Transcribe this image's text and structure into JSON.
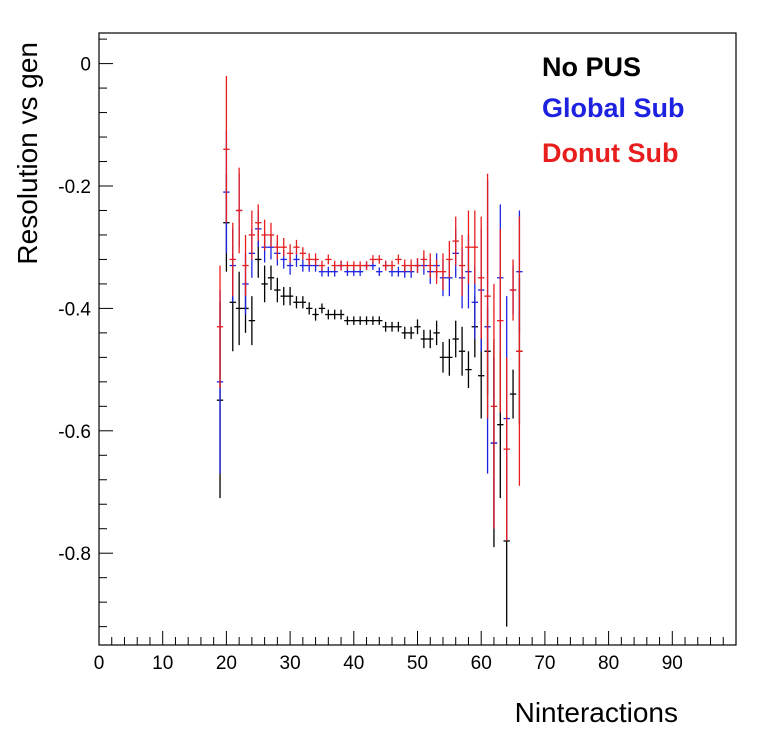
{
  "chart_data": {
    "type": "scatter",
    "xlabel": "Ninteractions",
    "ylabel": "Resolution vs gen",
    "xlim": [
      0,
      100
    ],
    "ylim": [
      -0.95,
      0.05
    ],
    "x_ticks": [
      0,
      10,
      20,
      30,
      40,
      50,
      60,
      70,
      80,
      90
    ],
    "y_ticks": [
      0,
      -0.2,
      -0.4,
      -0.6,
      -0.8
    ],
    "x_tick_labels": [
      "0",
      "10",
      "20",
      "30",
      "40",
      "50",
      "60",
      "70",
      "80",
      "90"
    ],
    "y_tick_labels": [
      "0",
      "-0.2",
      "-0.4",
      "-0.6",
      "-0.8"
    ],
    "grid": false,
    "legend_position": "top-right",
    "x_error_half_width": 0.5,
    "series": [
      {
        "name": "No PUS",
        "color": "#000000",
        "x": [
          19,
          20,
          21,
          22,
          23,
          24,
          25,
          26,
          27,
          28,
          29,
          30,
          31,
          32,
          33,
          34,
          35,
          36,
          37,
          38,
          39,
          40,
          41,
          42,
          43,
          44,
          45,
          46,
          47,
          48,
          49,
          50,
          51,
          52,
          53,
          54,
          55,
          56,
          57,
          58,
          59,
          60,
          61,
          62,
          63,
          64,
          65,
          66
        ],
        "y": [
          -0.55,
          -0.26,
          -0.39,
          -0.4,
          -0.4,
          -0.42,
          -0.32,
          -0.36,
          -0.35,
          -0.37,
          -0.38,
          -0.38,
          -0.39,
          -0.39,
          -0.4,
          -0.41,
          -0.4,
          -0.41,
          -0.41,
          -0.41,
          -0.42,
          -0.42,
          -0.42,
          -0.42,
          -0.42,
          -0.42,
          -0.43,
          -0.43,
          -0.43,
          -0.44,
          -0.44,
          -0.43,
          -0.45,
          -0.45,
          -0.44,
          -0.48,
          -0.48,
          -0.45,
          -0.47,
          -0.5,
          -0.43,
          -0.51,
          -0.47,
          -0.62,
          -0.59,
          -0.78,
          -0.54,
          -0.47
        ],
        "err": [
          0.16,
          0.08,
          0.08,
          0.06,
          0.04,
          0.04,
          0.03,
          0.03,
          0.02,
          0.02,
          0.015,
          0.015,
          0.01,
          0.01,
          0.01,
          0.01,
          0.008,
          0.008,
          0.008,
          0.008,
          0.007,
          0.007,
          0.007,
          0.007,
          0.007,
          0.007,
          0.008,
          0.008,
          0.008,
          0.01,
          0.01,
          0.012,
          0.015,
          0.015,
          0.02,
          0.025,
          0.03,
          0.03,
          0.04,
          0.03,
          0.05,
          0.07,
          0.07,
          0.17,
          0.12,
          0.14,
          0.04,
          0.12
        ]
      },
      {
        "name": "Global Sub",
        "color": "#1d22e0",
        "x": [
          19,
          20,
          21,
          22,
          23,
          24,
          25,
          26,
          27,
          28,
          29,
          30,
          31,
          32,
          33,
          34,
          35,
          36,
          37,
          38,
          39,
          40,
          41,
          42,
          43,
          44,
          45,
          46,
          47,
          48,
          49,
          50,
          51,
          52,
          53,
          54,
          55,
          56,
          57,
          58,
          59,
          60,
          61,
          62,
          63,
          64,
          65,
          66
        ],
        "y": [
          -0.52,
          -0.21,
          -0.33,
          -0.24,
          -0.36,
          -0.31,
          -0.27,
          -0.3,
          -0.3,
          -0.31,
          -0.32,
          -0.33,
          -0.32,
          -0.33,
          -0.33,
          -0.33,
          -0.34,
          -0.34,
          -0.34,
          -0.33,
          -0.34,
          -0.34,
          -0.34,
          -0.33,
          -0.33,
          -0.34,
          -0.33,
          -0.34,
          -0.34,
          -0.34,
          -0.34,
          -0.33,
          -0.33,
          -0.34,
          -0.33,
          -0.35,
          -0.35,
          -0.31,
          -0.35,
          -0.34,
          -0.39,
          -0.37,
          -0.43,
          -0.62,
          -0.35,
          -0.58,
          -0.37,
          -0.34
        ],
        "err": [
          0.15,
          0.1,
          0.06,
          0.06,
          0.05,
          0.04,
          0.03,
          0.025,
          0.02,
          0.02,
          0.015,
          0.015,
          0.012,
          0.01,
          0.01,
          0.01,
          0.008,
          0.008,
          0.008,
          0.008,
          0.007,
          0.007,
          0.007,
          0.007,
          0.007,
          0.007,
          0.008,
          0.008,
          0.008,
          0.01,
          0.01,
          0.012,
          0.015,
          0.02,
          0.02,
          0.03,
          0.03,
          0.04,
          0.05,
          0.06,
          0.06,
          0.1,
          0.24,
          0.14,
          0.12,
          0.2,
          0.04,
          0.1
        ]
      },
      {
        "name": "Donut Sub",
        "color": "#e81e1e",
        "x": [
          19,
          20,
          21,
          22,
          23,
          24,
          25,
          26,
          27,
          28,
          29,
          30,
          31,
          32,
          33,
          34,
          35,
          36,
          37,
          38,
          39,
          40,
          41,
          42,
          43,
          44,
          45,
          46,
          47,
          48,
          49,
          50,
          51,
          52,
          53,
          54,
          55,
          56,
          57,
          58,
          59,
          60,
          61,
          62,
          63,
          64,
          65,
          66
        ],
        "y": [
          -0.43,
          -0.14,
          -0.32,
          -0.24,
          -0.33,
          -0.28,
          -0.26,
          -0.28,
          -0.28,
          -0.3,
          -0.3,
          -0.31,
          -0.3,
          -0.31,
          -0.32,
          -0.32,
          -0.33,
          -0.32,
          -0.33,
          -0.33,
          -0.33,
          -0.33,
          -0.33,
          -0.33,
          -0.32,
          -0.32,
          -0.33,
          -0.33,
          -0.32,
          -0.33,
          -0.33,
          -0.33,
          -0.32,
          -0.33,
          -0.34,
          -0.34,
          -0.32,
          -0.29,
          -0.33,
          -0.3,
          -0.3,
          -0.35,
          -0.38,
          -0.56,
          -0.42,
          -0.63,
          -0.37,
          -0.47
        ],
        "err": [
          0.1,
          0.12,
          0.06,
          0.07,
          0.05,
          0.04,
          0.03,
          0.025,
          0.02,
          0.02,
          0.015,
          0.015,
          0.012,
          0.01,
          0.01,
          0.01,
          0.008,
          0.008,
          0.008,
          0.008,
          0.007,
          0.007,
          0.007,
          0.007,
          0.007,
          0.007,
          0.008,
          0.008,
          0.008,
          0.01,
          0.01,
          0.012,
          0.015,
          0.02,
          0.02,
          0.03,
          0.03,
          0.04,
          0.05,
          0.06,
          0.06,
          0.1,
          0.2,
          0.2,
          0.15,
          0.15,
          0.05,
          0.22
        ]
      }
    ]
  }
}
